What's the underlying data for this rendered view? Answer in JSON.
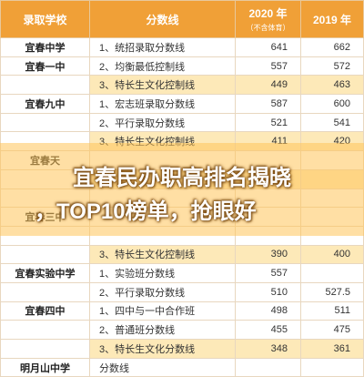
{
  "table": {
    "headers": {
      "school": "录取学校",
      "line": "分数线",
      "y2020": "2020 年",
      "y2020_sub": "（不含体育）",
      "y2019": "2019 年"
    },
    "rows": [
      {
        "school": "宜春中学",
        "line": "1、统招录取分数线",
        "y2020": "641",
        "y2019": "662",
        "hl": false
      },
      {
        "school": "宜春一中",
        "line": "2、均衡最低控制线",
        "y2020": "557",
        "y2019": "572",
        "hl": false
      },
      {
        "school": "",
        "line": "3、特长生文化控制线",
        "y2020": "449",
        "y2019": "463",
        "hl": true
      },
      {
        "school": "宜春九中",
        "line": "1、宏志班录取分数线",
        "y2020": "587",
        "y2019": "600",
        "hl": false
      },
      {
        "school": "",
        "line": "2、平行录取分数线",
        "y2020": "521",
        "y2019": "541",
        "hl": false
      },
      {
        "school": "",
        "line": "3、特长生文化控制线",
        "y2020": "411",
        "y2019": "420",
        "hl": true
      },
      {
        "school": "宜春天",
        "line": "",
        "y2020": "",
        "y2019": "",
        "hl": false
      },
      {
        "school": "",
        "line": "",
        "y2020": "",
        "y2019": "",
        "hl": true
      },
      {
        "school": "",
        "line": "",
        "y2020": "",
        "y2019": "",
        "hl": false
      },
      {
        "school": "宜春三中",
        "line": "",
        "y2020": "",
        "y2019": "",
        "hl": false
      },
      {
        "school": "",
        "line": "",
        "y2020": "",
        "y2019": "",
        "hl": false
      },
      {
        "school": "",
        "line": "3、特长生文化控制线",
        "y2020": "390",
        "y2019": "400",
        "hl": true
      },
      {
        "school": "宜春实验中学",
        "line": "1、实验班分数线",
        "y2020": "557",
        "y2019": "",
        "hl": false
      },
      {
        "school": "",
        "line": "2、平行录取分数线",
        "y2020": "510",
        "y2019": "527.5",
        "hl": false
      },
      {
        "school": "宜春四中",
        "line": "1、四中与一中合作班",
        "y2020": "498",
        "y2019": "511",
        "hl": false
      },
      {
        "school": "",
        "line": "2、普通班分数线",
        "y2020": "455",
        "y2019": "475",
        "hl": false
      },
      {
        "school": "",
        "line": "3、特长生文化分数线",
        "y2020": "348",
        "y2019": "361",
        "hl": true
      },
      {
        "school": "明月山中学",
        "line": "分数线",
        "y2020": "",
        "y2019": "",
        "hl": false
      }
    ]
  },
  "overlay": {
    "headline_line1": "宜春民办职高排名揭晓",
    "headline_line2": "，TOP10榜单，抢眼好"
  },
  "colors": {
    "header_bg": "#f0a037",
    "highlight_row": "#fde9b8",
    "banner": "#ffc45a"
  }
}
